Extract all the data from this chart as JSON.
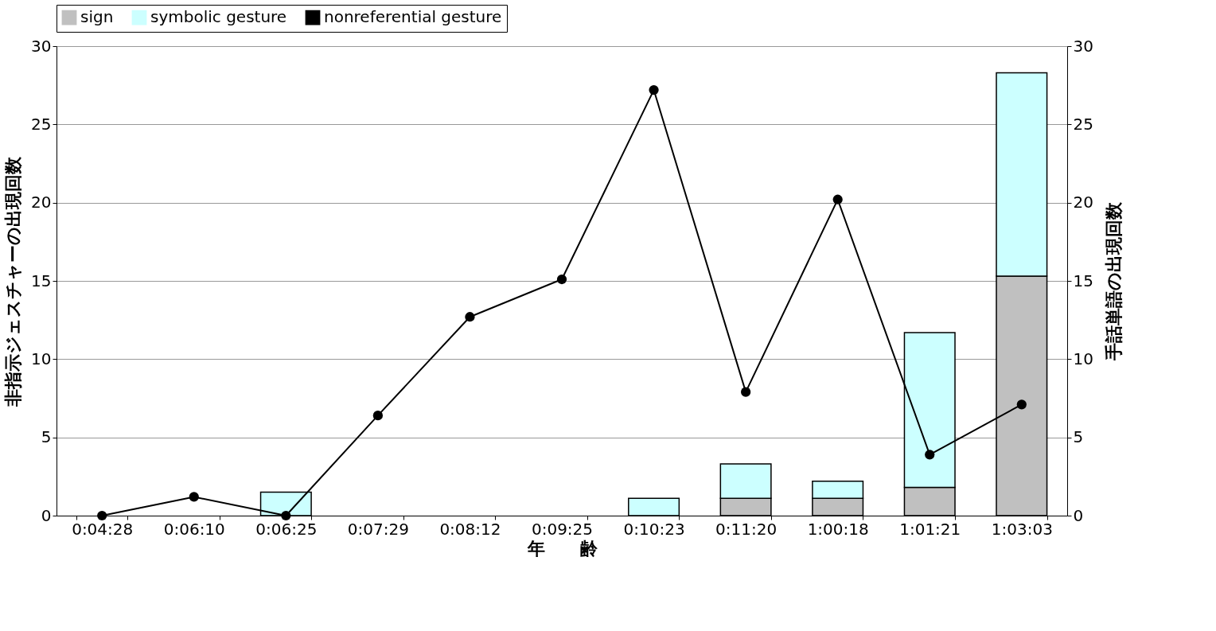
{
  "chart_data": {
    "type": "bar",
    "stacked": true,
    "xlabel": "年　　齢",
    "ylabel": "非指示ジェスチャーの出現回数",
    "y2label": "手話単語の出現回数",
    "categories": [
      "0:04:28",
      "0:06:10",
      "0:06:25",
      "0:07:29",
      "0:08:12",
      "0:09:25",
      "0:10:23",
      "0:11:20",
      "1:00:18",
      "1:01:21",
      "1:03:03"
    ],
    "series": [
      {
        "name": "sign",
        "axis": "y2",
        "color": "#c0c0c0",
        "values": [
          null,
          null,
          null,
          null,
          null,
          null,
          null,
          1.1,
          1.1,
          1.8,
          15.3
        ]
      },
      {
        "name": "symbolic gesture",
        "axis": "y2",
        "color": "#ccffff",
        "values": [
          null,
          null,
          1.5,
          null,
          null,
          null,
          1.1,
          2.2,
          1.1,
          9.9,
          13.0
        ]
      },
      {
        "name": "nonreferential gesture",
        "type": "line",
        "color": "#000000",
        "values": [
          0,
          1.2,
          0,
          6.4,
          12.7,
          15.1,
          27.2,
          7.9,
          20.2,
          3.9,
          7.1
        ]
      }
    ],
    "ylim": [
      0,
      30
    ],
    "yticks": [
      0,
      5,
      10,
      15,
      20,
      25,
      30
    ],
    "y2lim": [
      0,
      30
    ],
    "y2ticks": [
      0,
      5,
      10,
      15,
      20,
      25,
      30
    ],
    "grid": "y",
    "legend": "top",
    "marker": "circle",
    "line_style": "solid"
  }
}
